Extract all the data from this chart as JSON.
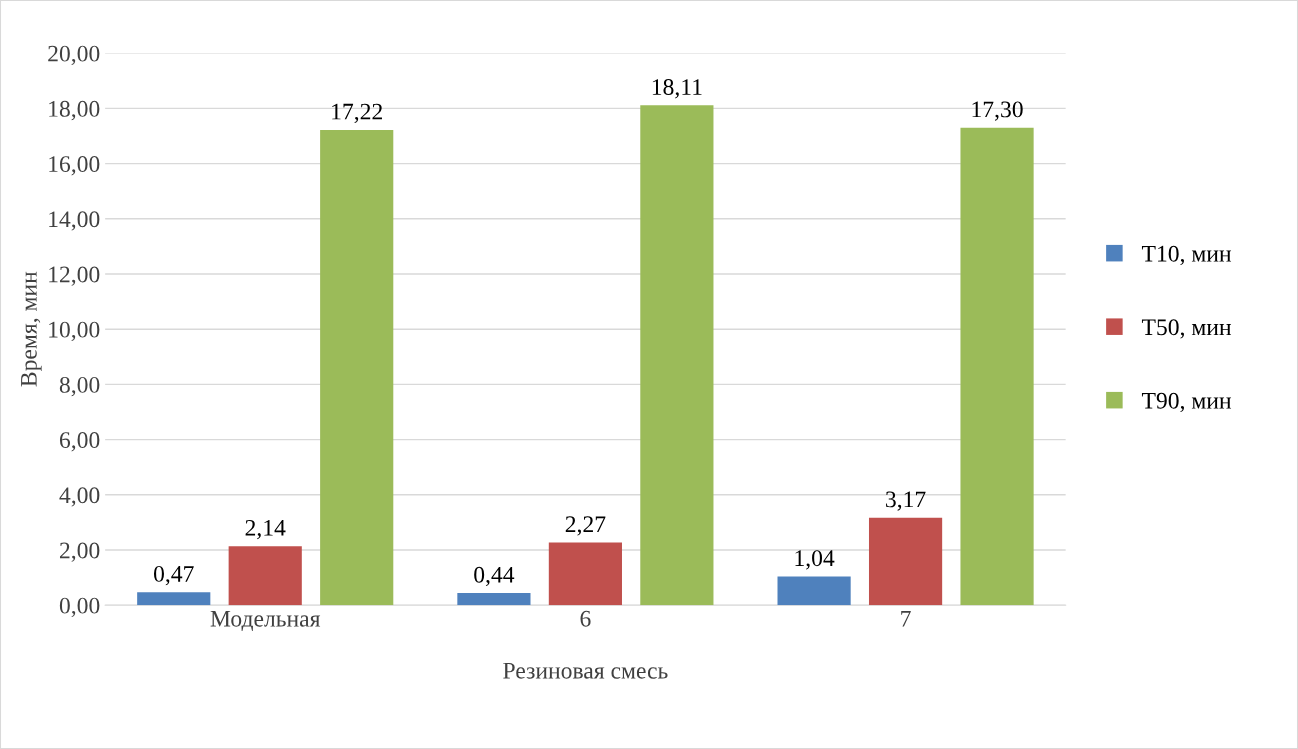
{
  "chart_data": {
    "type": "bar",
    "xlabel": "Резиновая смесь",
    "ylabel": "Время, мин",
    "categories": [
      "Модельная",
      "6",
      "7"
    ],
    "series": [
      {
        "name": "T10, мин",
        "color": "#4f81bd",
        "values": [
          0.47,
          0.44,
          1.04
        ],
        "value_labels": [
          "0,47",
          "0,44",
          "1,04"
        ]
      },
      {
        "name": "T50, мин",
        "color": "#c0504d",
        "values": [
          2.14,
          2.27,
          3.17
        ],
        "value_labels": [
          "2,14",
          "2,27",
          "3,17"
        ]
      },
      {
        "name": "T90, мин",
        "color": "#9bbb59",
        "values": [
          17.22,
          18.11,
          17.3
        ],
        "value_labels": [
          "17,22",
          "18,11",
          "17,30"
        ]
      }
    ],
    "ylim": [
      0,
      20
    ],
    "yticks": [
      {
        "value": 0,
        "label": "0,00"
      },
      {
        "value": 2,
        "label": "2,00"
      },
      {
        "value": 4,
        "label": "4,00"
      },
      {
        "value": 6,
        "label": "6,00"
      },
      {
        "value": 8,
        "label": "8,00"
      },
      {
        "value": 10,
        "label": "10,00"
      },
      {
        "value": 12,
        "label": "12,00"
      },
      {
        "value": 14,
        "label": "14,00"
      },
      {
        "value": 16,
        "label": "16,00"
      },
      {
        "value": 18,
        "label": "18,00"
      },
      {
        "value": 20,
        "label": "20,00"
      }
    ],
    "grid": "y",
    "legend": "right"
  }
}
